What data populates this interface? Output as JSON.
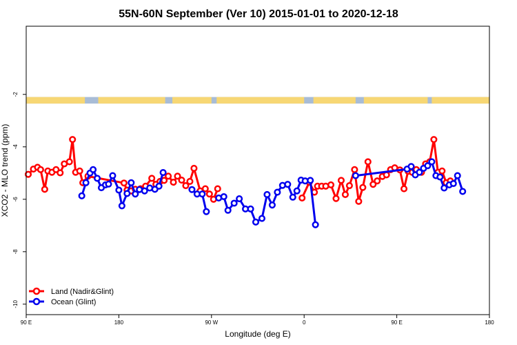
{
  "chart_data": {
    "type": "line",
    "title": "55N-60N September (Ver 10)   2015-01-01 to 2020-12-18",
    "xlabel": "Longitude (deg E)",
    "ylabel": "XCO2 - MLO trend (ppm)",
    "x_ticks": [
      {
        "value": 90,
        "label": "90 E"
      },
      {
        "value": 180,
        "label": "180"
      },
      {
        "value": 270,
        "label": "90 W"
      },
      {
        "value": 360,
        "label": "0"
      },
      {
        "value": 450,
        "label": "90 E"
      },
      {
        "value": 540,
        "label": "180"
      }
    ],
    "y_ticks": [
      {
        "value": -2,
        "label": "-2"
      },
      {
        "value": -4,
        "label": "-4"
      },
      {
        "value": -6,
        "label": "-6"
      },
      {
        "value": -8,
        "label": "-8"
      },
      {
        "value": -10,
        "label": "-10"
      }
    ],
    "xlim": [
      90,
      540
    ],
    "ylim": [
      -10.4,
      0.6
    ],
    "grid": false,
    "legend_position": "bottom-left",
    "land_band": {
      "y_range": [
        -2.35,
        -2.1
      ],
      "ocean_color": "#a8bcd6",
      "land_color": "#f7d774",
      "land_segments": [
        [
          90,
          147
        ],
        [
          160,
          225
        ],
        [
          232,
          270
        ],
        [
          275,
          360
        ],
        [
          369,
          410
        ],
        [
          418,
          480
        ],
        [
          484,
          540
        ]
      ]
    },
    "series": [
      {
        "name": "Land (Nadir&Glint)",
        "color": "#ff0000",
        "segments": [
          [
            [
              92,
              -5.05
            ],
            [
              97,
              -4.85
            ],
            [
              101,
              -4.78
            ],
            [
              104,
              -4.87
            ],
            [
              108,
              -5.62
            ],
            [
              111,
              -4.92
            ],
            [
              115,
              -4.97
            ],
            [
              119,
              -4.87
            ],
            [
              123,
              -4.99
            ],
            [
              127,
              -4.65
            ],
            [
              132,
              -4.57
            ],
            [
              135,
              -3.72
            ],
            [
              138,
              -4.97
            ],
            [
              142,
              -4.92
            ],
            [
              145,
              -5.37
            ],
            [
              150,
              -5.12
            ],
            [
              185,
              -5.38
            ],
            [
              188,
              -5.65
            ],
            [
              192,
              -5.68
            ],
            [
              196,
              -5.62
            ],
            [
              201,
              -5.6
            ],
            [
              206,
              -5.5
            ],
            [
              212,
              -5.2
            ],
            [
              216,
              -5.43
            ],
            [
              220,
              -5.32
            ],
            [
              224,
              -5.28
            ],
            [
              228,
              -5.12
            ],
            [
              233,
              -5.35
            ],
            [
              237,
              -5.12
            ],
            [
              241,
              -5.27
            ],
            [
              245,
              -5.48
            ],
            [
              249,
              -5.32
            ],
            [
              253,
              -4.82
            ],
            [
              259,
              -5.68
            ],
            [
              264,
              -5.6
            ],
            [
              268,
              -5.8
            ],
            [
              272,
              -6.0
            ],
            [
              276,
              -5.6
            ]
          ],
          [
            [
              358,
              -5.95
            ],
            [
              365,
              -5.35
            ],
            [
              370,
              -5.73
            ],
            [
              373,
              -5.5
            ],
            [
              377,
              -5.5
            ],
            [
              381,
              -5.5
            ],
            [
              386,
              -5.45
            ],
            [
              391,
              -5.97
            ],
            [
              396,
              -5.28
            ],
            [
              400,
              -5.82
            ],
            [
              404,
              -5.48
            ],
            [
              409,
              -4.87
            ],
            [
              413,
              -6.08
            ],
            [
              417,
              -5.55
            ],
            [
              422,
              -4.57
            ],
            [
              427,
              -5.43
            ],
            [
              431,
              -5.3
            ],
            [
              436,
              -5.13
            ],
            [
              440,
              -5.07
            ],
            [
              444,
              -4.87
            ],
            [
              448,
              -4.8
            ],
            [
              453,
              -4.88
            ],
            [
              457,
              -5.6
            ],
            [
              461,
              -4.93
            ],
            [
              465,
              -4.97
            ],
            [
              469,
              -4.87
            ],
            [
              474,
              -4.97
            ],
            [
              478,
              -4.65
            ],
            [
              482,
              -4.57
            ],
            [
              486,
              -3.72
            ],
            [
              490,
              -4.97
            ],
            [
              494,
              -4.92
            ],
            [
              498,
              -5.37
            ],
            [
              502,
              -5.3
            ]
          ]
        ]
      },
      {
        "name": "Ocean (Glint)",
        "color": "#0000ee",
        "segments": [
          [
            [
              144,
              -5.87
            ],
            [
              148,
              -5.37
            ],
            [
              152,
              -5.0
            ],
            [
              155,
              -4.87
            ],
            [
              159,
              -5.2
            ],
            [
              163,
              -5.56
            ],
            [
              167,
              -5.45
            ],
            [
              170,
              -5.42
            ],
            [
              174,
              -5.1
            ],
            [
              180,
              -5.65
            ],
            [
              183,
              -6.25
            ],
            [
              188,
              -5.78
            ],
            [
              192,
              -5.37
            ],
            [
              196,
              -5.8
            ],
            [
              200,
              -5.63
            ],
            [
              205,
              -5.68
            ],
            [
              210,
              -5.57
            ],
            [
              215,
              -5.62
            ],
            [
              219,
              -5.5
            ],
            [
              223,
              -4.98
            ]
          ],
          [
            [
              251,
              -5.63
            ],
            [
              256,
              -5.8
            ],
            [
              261,
              -5.8
            ],
            [
              265,
              -6.47
            ]
          ],
          [
            [
              277,
              -5.95
            ],
            [
              282,
              -5.9
            ],
            [
              286,
              -6.42
            ],
            [
              292,
              -6.15
            ],
            [
              297,
              -5.98
            ],
            [
              303,
              -6.37
            ],
            [
              308,
              -6.37
            ],
            [
              313,
              -6.87
            ],
            [
              319,
              -6.73
            ],
            [
              324,
              -5.82
            ],
            [
              329,
              -6.22
            ],
            [
              334,
              -5.73
            ],
            [
              339,
              -5.47
            ],
            [
              344,
              -5.43
            ],
            [
              349,
              -5.92
            ],
            [
              353,
              -5.68
            ],
            [
              357,
              -5.27
            ],
            [
              361,
              -5.3
            ],
            [
              366,
              -5.28
            ],
            [
              371,
              -6.97
            ]
          ],
          [
            [
              410,
              -5.1
            ],
            [
              460,
              -4.85
            ],
            [
              464,
              -4.75
            ],
            [
              468,
              -5.07
            ],
            [
              472,
              -4.97
            ],
            [
              476,
              -4.82
            ],
            [
              480,
              -4.72
            ],
            [
              484,
              -4.57
            ],
            [
              488,
              -5.1
            ],
            [
              492,
              -5.15
            ],
            [
              496,
              -5.57
            ],
            [
              501,
              -5.45
            ],
            [
              505,
              -5.4
            ],
            [
              509,
              -5.1
            ],
            [
              514,
              -5.7
            ]
          ]
        ]
      }
    ]
  }
}
